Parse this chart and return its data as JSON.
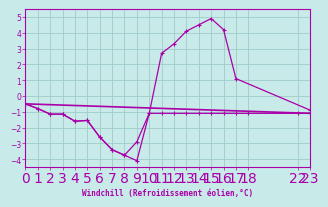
{
  "background_color": "#c8eae8",
  "grid_color": "#a0ccca",
  "line_color": "#aa00aa",
  "xlabel": "Windchill (Refroidissement éolien,°C)",
  "xlim": [
    0,
    23
  ],
  "ylim": [
    -4.5,
    5.5
  ],
  "yticks": [
    -4,
    -3,
    -2,
    -1,
    0,
    1,
    2,
    3,
    4,
    5
  ],
  "line1_x": [
    0,
    1,
    2,
    3,
    4,
    5,
    6,
    7,
    8,
    9,
    10,
    11,
    12,
    13,
    14,
    15,
    16,
    17,
    18,
    22,
    23
  ],
  "line1_y": [
    -0.5,
    -0.8,
    -1.15,
    -1.15,
    -1.6,
    -1.55,
    -2.6,
    -3.4,
    -3.75,
    -4.1,
    -1.1,
    -1.1,
    -1.1,
    -1.1,
    -1.1,
    -1.1,
    -1.1,
    -1.1,
    -1.1,
    -1.1,
    -1.1
  ],
  "line2_x": [
    0,
    1,
    2,
    3,
    4,
    5,
    6,
    7,
    8,
    9,
    10,
    11,
    12,
    13,
    14,
    15,
    16,
    17,
    23
  ],
  "line2_y": [
    -0.5,
    -0.8,
    -1.15,
    -1.15,
    -1.6,
    -1.55,
    -2.6,
    -3.4,
    -3.75,
    -2.9,
    -1.1,
    2.7,
    3.3,
    4.1,
    4.5,
    4.9,
    4.2,
    1.1,
    -0.9
  ],
  "line3_x": [
    0,
    23
  ],
  "line3_y": [
    -0.5,
    -1.1
  ]
}
